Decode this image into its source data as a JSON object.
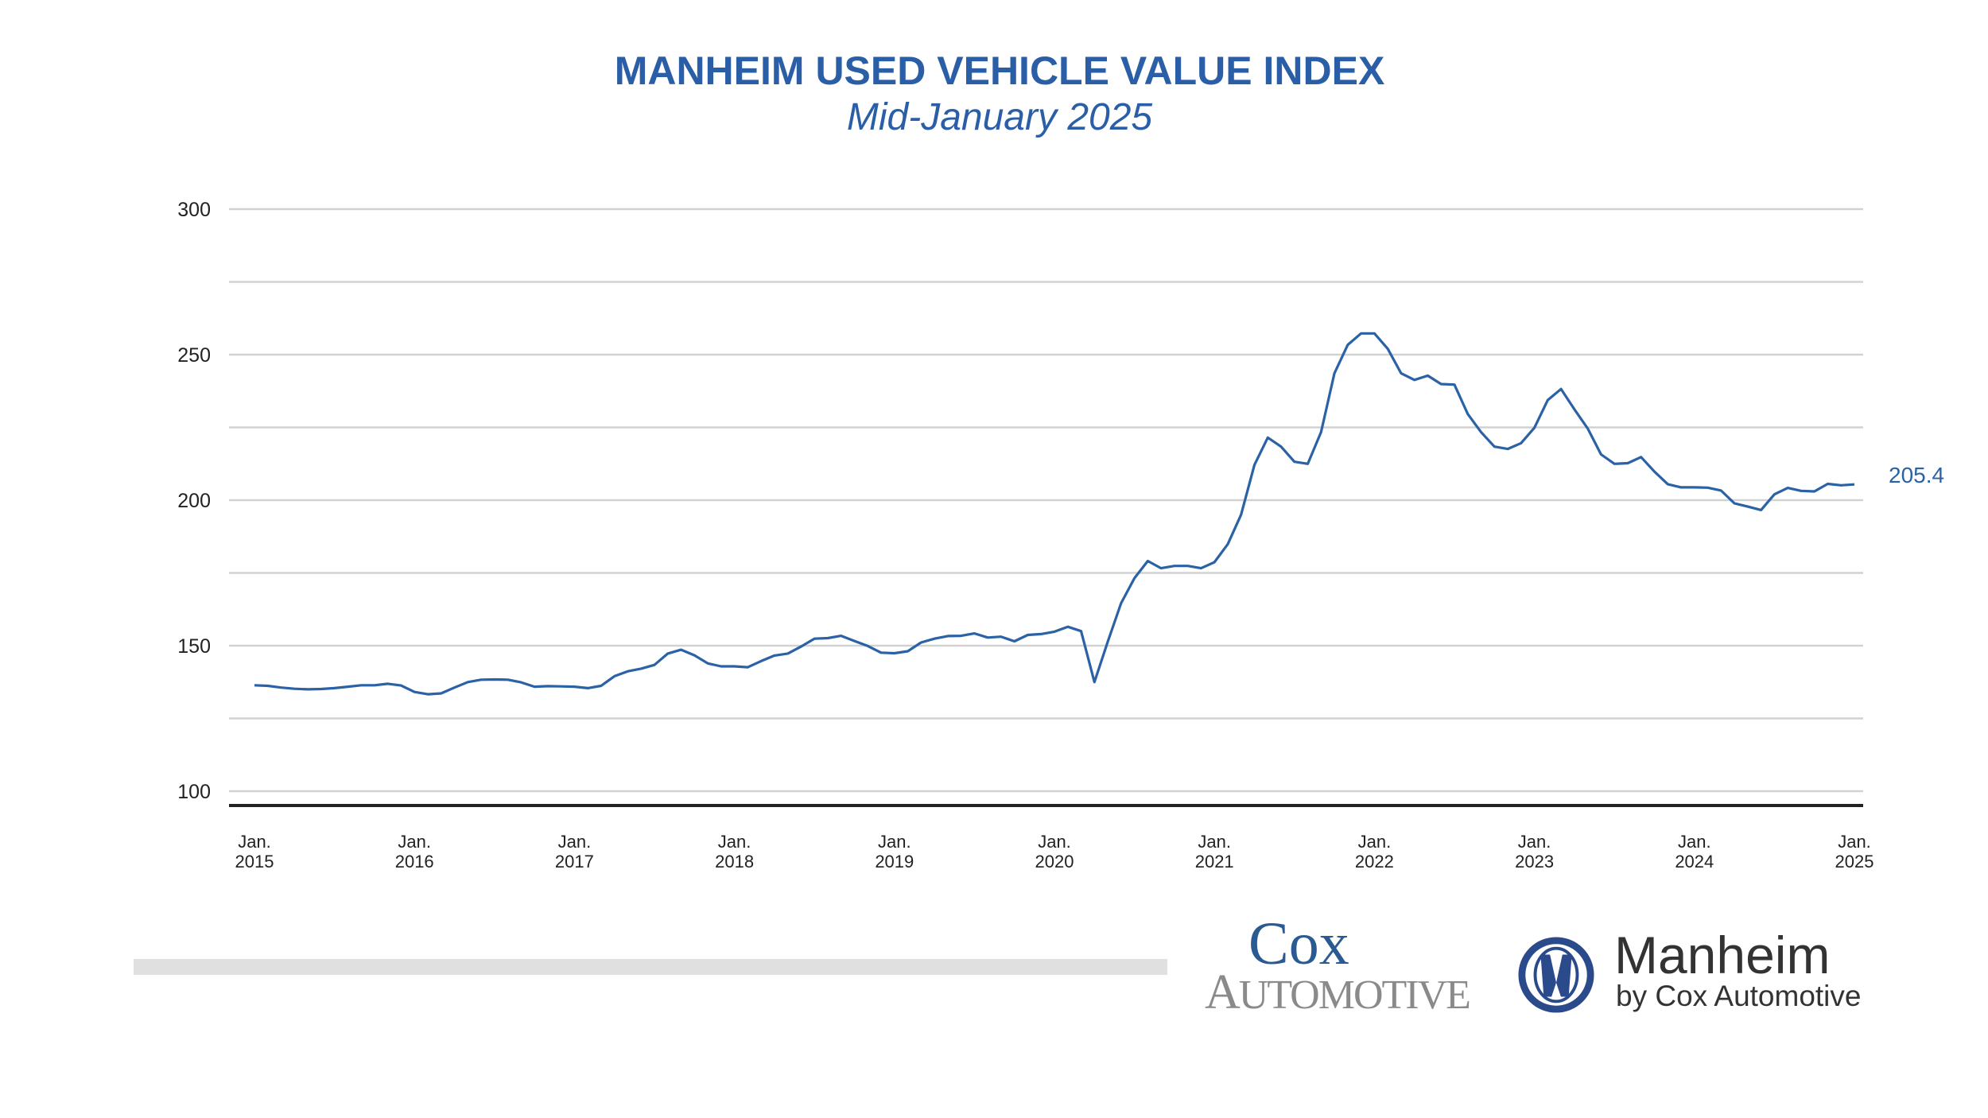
{
  "header": {
    "title": "MANHEIM USED VEHICLE VALUE INDEX",
    "subtitle": "Mid-January 2025"
  },
  "chart_data": {
    "type": "line",
    "title": "MANHEIM USED VEHICLE VALUE INDEX",
    "subtitle": "Mid-January 2025",
    "xlabel": "",
    "ylabel": "",
    "ylim": [
      95,
      300
    ],
    "y_ticks": [
      100,
      150,
      200,
      250,
      300
    ],
    "y_gridlines": [
      100,
      125,
      150,
      175,
      200,
      225,
      250,
      275,
      300
    ],
    "grid": true,
    "x_tick_labels": [
      {
        "month": "Jan.",
        "year": "2015",
        "x": "2015-01"
      },
      {
        "month": "Jan.",
        "year": "2016",
        "x": "2016-01"
      },
      {
        "month": "Jan.",
        "year": "2017",
        "x": "2017-01"
      },
      {
        "month": "Jan.",
        "year": "2018",
        "x": "2018-01"
      },
      {
        "month": "Jan.",
        "year": "2019",
        "x": "2019-01"
      },
      {
        "month": "Jan.",
        "year": "2020",
        "x": "2020-01"
      },
      {
        "month": "Jan.",
        "year": "2021",
        "x": "2021-01"
      },
      {
        "month": "Jan.",
        "year": "2022",
        "x": "2022-01"
      },
      {
        "month": "Jan.",
        "year": "2023",
        "x": "2023-01"
      },
      {
        "month": "Jan.",
        "year": "2024",
        "x": "2024-01"
      },
      {
        "month": "Jan.",
        "year": "2025",
        "x": "2025-01"
      }
    ],
    "x": [
      "2015-01",
      "2015-02",
      "2015-03",
      "2015-04",
      "2015-05",
      "2015-06",
      "2015-07",
      "2015-08",
      "2015-09",
      "2015-10",
      "2015-11",
      "2015-12",
      "2016-01",
      "2016-02",
      "2016-03",
      "2016-04",
      "2016-05",
      "2016-06",
      "2016-07",
      "2016-08",
      "2016-09",
      "2016-10",
      "2016-11",
      "2016-12",
      "2017-01",
      "2017-02",
      "2017-03",
      "2017-04",
      "2017-05",
      "2017-06",
      "2017-07",
      "2017-08",
      "2017-09",
      "2017-10",
      "2017-11",
      "2017-12",
      "2018-01",
      "2018-02",
      "2018-03",
      "2018-04",
      "2018-05",
      "2018-06",
      "2018-07",
      "2018-08",
      "2018-09",
      "2018-10",
      "2018-11",
      "2018-12",
      "2019-01",
      "2019-02",
      "2019-03",
      "2019-04",
      "2019-05",
      "2019-06",
      "2019-07",
      "2019-08",
      "2019-09",
      "2019-10",
      "2019-11",
      "2019-12",
      "2020-01",
      "2020-02",
      "2020-03",
      "2020-04",
      "2020-05",
      "2020-06",
      "2020-07",
      "2020-08",
      "2020-09",
      "2020-10",
      "2020-11",
      "2020-12",
      "2021-01",
      "2021-02",
      "2021-03",
      "2021-04",
      "2021-05",
      "2021-06",
      "2021-07",
      "2021-08",
      "2021-09",
      "2021-10",
      "2021-11",
      "2021-12",
      "2022-01",
      "2022-02",
      "2022-03",
      "2022-04",
      "2022-05",
      "2022-06",
      "2022-07",
      "2022-08",
      "2022-09",
      "2022-10",
      "2022-11",
      "2022-12",
      "2023-01",
      "2023-02",
      "2023-03",
      "2023-04",
      "2023-05",
      "2023-06",
      "2023-07",
      "2023-08",
      "2023-09",
      "2023-10",
      "2023-11",
      "2023-12",
      "2024-01",
      "2024-02",
      "2024-03",
      "2024-04",
      "2024-05",
      "2024-06",
      "2024-07",
      "2024-08",
      "2024-09",
      "2024-10",
      "2024-11",
      "2024-12",
      "2025-01"
    ],
    "series": [
      {
        "values": [
          136.4,
          136.2,
          135.6,
          135.2,
          135.0,
          135.1,
          135.4,
          135.9,
          136.4,
          136.4,
          136.9,
          136.3,
          134.1,
          133.3,
          133.6,
          135.6,
          137.5,
          138.3,
          138.4,
          138.3,
          137.4,
          135.9,
          136.1,
          136.0,
          135.9,
          135.4,
          136.2,
          139.5,
          141.2,
          142.1,
          143.4,
          147.3,
          148.6,
          146.7,
          143.9,
          142.9,
          142.9,
          142.6,
          144.7,
          146.6,
          147.3,
          149.7,
          152.4,
          152.6,
          153.4,
          151.6,
          149.9,
          147.6,
          147.4,
          148.1,
          151.1,
          152.4,
          153.3,
          153.4,
          154.2,
          152.8,
          153.1,
          151.5,
          153.7,
          154.0,
          154.8,
          156.5,
          155.0,
          137.5,
          151.4,
          164.6,
          173.2,
          179.1,
          176.6,
          177.4,
          177.4,
          176.6,
          178.7,
          184.9,
          195.0,
          212.1,
          221.5,
          218.4,
          213.2,
          212.5,
          223.4,
          243.6,
          253.4,
          257.3,
          257.3,
          252.0,
          243.6,
          241.3,
          242.8,
          239.9,
          239.7,
          229.6,
          223.4,
          218.4,
          217.6,
          219.6,
          224.9,
          234.4,
          238.2,
          231.2,
          224.6,
          215.7,
          212.5,
          212.7,
          214.8,
          209.8,
          205.5,
          204.4,
          204.4,
          204.3,
          203.3,
          198.9,
          197.8,
          196.6,
          202.0,
          204.2,
          203.2,
          203.0,
          205.6,
          205.1,
          205.4
        ],
        "color": "#2b62a6"
      }
    ],
    "end_label": "205.4"
  },
  "branding": {
    "cox_top": "Cox",
    "cox_bottom": "Automotive",
    "manheim_name": "Manheim",
    "manheim_tagline": "by Cox Automotive"
  },
  "colors": {
    "title": "#2a5ea6",
    "line": "#2b62a6",
    "grid": "#d2d2d2",
    "axis": "#222222",
    "cox_blue": "#2a5a92",
    "cox_gray": "#8a8a8c"
  }
}
